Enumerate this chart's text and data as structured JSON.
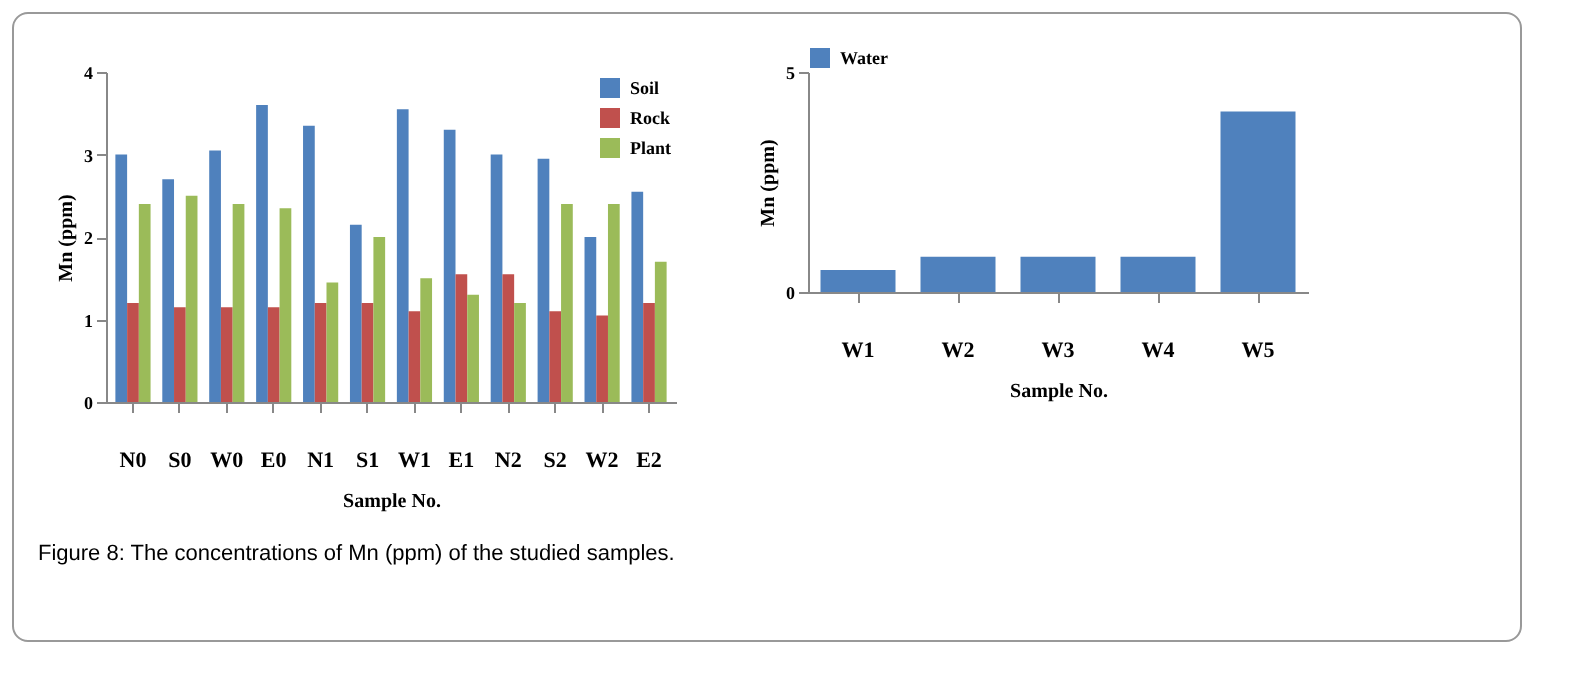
{
  "chart_data": [
    {
      "type": "bar",
      "xlabel": "Sample No.",
      "ylabel": "Mn (ppm)",
      "categories": [
        "N0",
        "S0",
        "W0",
        "E0",
        "N1",
        "S1",
        "W1",
        "E1",
        "N2",
        "S2",
        "W2",
        "E2"
      ],
      "series": [
        {
          "name": "Soil",
          "color": "#4f81bd",
          "values": [
            3.0,
            2.7,
            3.05,
            3.6,
            3.35,
            2.15,
            3.55,
            3.3,
            3.0,
            2.95,
            2.0,
            2.55
          ]
        },
        {
          "name": "Rock",
          "color": "#c0504d",
          "values": [
            1.2,
            1.15,
            1.15,
            1.15,
            1.2,
            1.2,
            1.1,
            1.55,
            1.55,
            1.1,
            1.05,
            1.2
          ]
        },
        {
          "name": "Plant",
          "color": "#9bbb59",
          "values": [
            2.4,
            2.5,
            2.4,
            2.35,
            1.45,
            2.0,
            1.5,
            1.3,
            1.2,
            2.4,
            2.4,
            1.7
          ]
        }
      ],
      "ylim": [
        0,
        4
      ],
      "yticks": [
        0,
        1,
        2,
        3,
        4
      ],
      "grid": false,
      "legend": "top right",
      "annotations": [
        "Figure 8: The concentrations of Mn (ppm) of the studied samples."
      ]
    },
    {
      "type": "bar",
      "xlabel": "Sample No.",
      "ylabel": "Mn (ppm)",
      "categories": [
        "W1",
        "W2",
        "W3",
        "W4",
        "W5"
      ],
      "series": [
        {
          "name": "Water",
          "color": "#4f81bd",
          "values": [
            0.5,
            0.8,
            0.8,
            0.8,
            4.1
          ]
        }
      ],
      "ylim": [
        0,
        5
      ],
      "yticks": [
        0,
        5
      ],
      "grid": false,
      "legend": "top"
    }
  ]
}
